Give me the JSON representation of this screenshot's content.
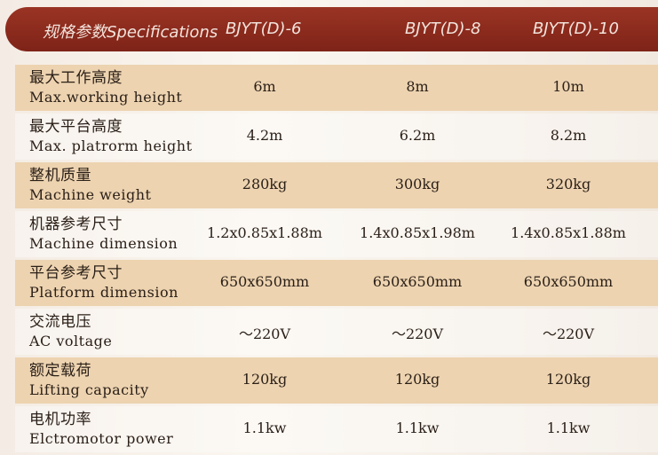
{
  "header": {
    "title": "规格参数Specifications",
    "models": [
      "BJYT(D)-6",
      "BJYT(D)-8",
      "BJYT(D)-10"
    ]
  },
  "colors": {
    "header": "#8a2a1e",
    "row_shade": "#edd3b0"
  },
  "rows": [
    {
      "zh": "最大工作高度",
      "en": "Max.working height",
      "values": [
        "6m",
        "8m",
        "10m"
      ]
    },
    {
      "zh": "最大平台高度",
      "en": "Max. platrorm height",
      "values": [
        "4.2m",
        "6.2m",
        "8.2m"
      ]
    },
    {
      "zh": "整机质量",
      "en": "Machine weight",
      "values": [
        "280kg",
        "300kg",
        "320kg"
      ]
    },
    {
      "zh": "机器参考尺寸",
      "en": "Machine dimension",
      "values": [
        "1.2x0.85x1.88m",
        "1.4x0.85x1.98m",
        "1.4x0.85x1.88m"
      ]
    },
    {
      "zh": "平台参考尺寸",
      "en": "Platform dimension",
      "values": [
        "650x650mm",
        "650x650mm",
        "650x650mm"
      ]
    },
    {
      "zh": "交流电压",
      "en": "AC voltage",
      "values": [
        "～220V",
        "～220V",
        "～220V"
      ]
    },
    {
      "zh": "额定载荷",
      "en": "Lifting capacity",
      "values": [
        "120kg",
        "120kg",
        "120kg"
      ]
    },
    {
      "zh": "电机功率",
      "en": "Elctromotor power",
      "values": [
        "1.1kw",
        "1.1kw",
        "1.1kw"
      ]
    }
  ]
}
